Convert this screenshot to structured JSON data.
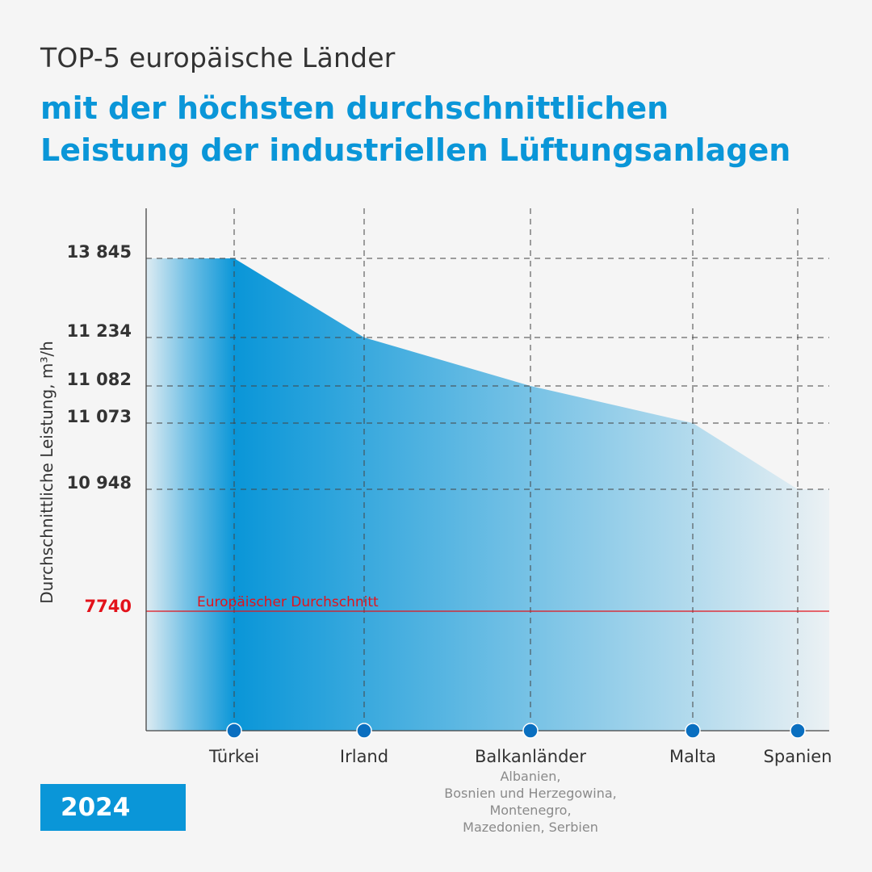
{
  "header": {
    "title": "TOP-5 europäische Länder",
    "subtitle_line1": "mit der höchsten durchschnittlichen",
    "subtitle_line2": "Leistung der industriellen Lüftungsanlagen"
  },
  "year_badge": "2024",
  "colors": {
    "accent": "#0a96d8",
    "area_dark": "#0a96d8",
    "average_line": "#e3121b",
    "dots": "#0a6fc0",
    "text": "#333333",
    "muted_text": "#8a8a8a"
  },
  "chart_data": {
    "type": "area",
    "title": "",
    "xlabel": "",
    "ylabel": "Durchschnittliche Leistung, m³/h",
    "categories": [
      "Türkei",
      "Irland",
      "Balkanländer",
      "Malta",
      "Spanien"
    ],
    "category_notes": [
      "",
      "",
      "Albanien,\nBosnien und Herzegowina,\nMontenegro,\nMazedonien, Serbien",
      "",
      ""
    ],
    "series": [
      {
        "values": [
          13845,
          11234,
          11082,
          11073,
          10948
        ]
      }
    ],
    "ytick_labels": [
      "13 845",
      "11 234",
      "11 082",
      "11 073",
      "10 948"
    ],
    "reference_line": {
      "value": 7740,
      "value_label": "7740",
      "label": "Europäischer Durchschnitt"
    },
    "grid": true
  }
}
